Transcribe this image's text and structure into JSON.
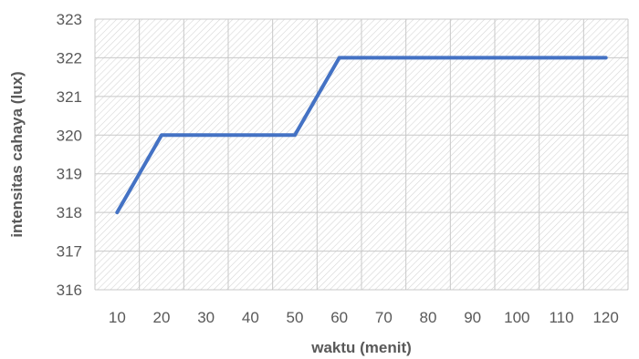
{
  "chart_data": {
    "type": "line",
    "title": "",
    "xlabel": "waktu (menit)",
    "ylabel": "intensitas cahaya  (lux)",
    "x": [
      10,
      20,
      30,
      40,
      50,
      60,
      70,
      80,
      90,
      100,
      110,
      120
    ],
    "series": [
      {
        "values": [
          318,
          320,
          320,
          320,
          320,
          322,
          322,
          322,
          322,
          322,
          322,
          322
        ],
        "color": "#4472C4"
      }
    ],
    "ylim": [
      316,
      323
    ],
    "yticks": [
      316,
      317,
      318,
      319,
      320,
      321,
      322,
      323
    ],
    "grid": true,
    "legend": "none"
  }
}
